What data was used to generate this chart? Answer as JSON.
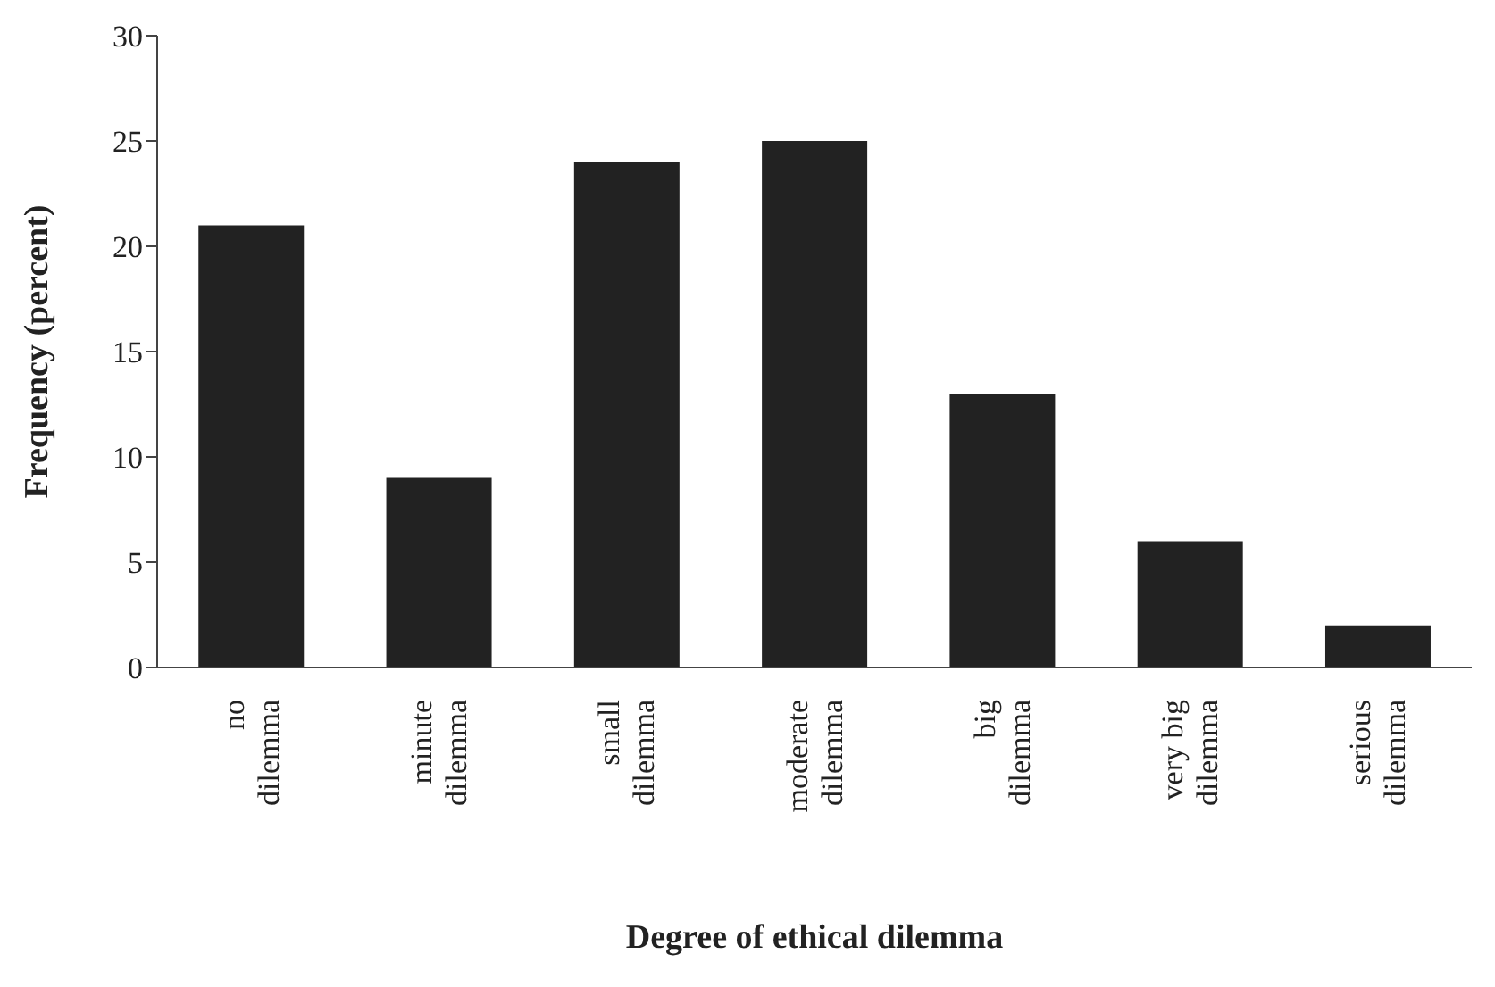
{
  "chart_data": {
    "type": "bar",
    "xlabel": "Degree of ethical dilemma",
    "ylabel": "Frequency (percent)",
    "categories": [
      "no dilemma",
      "minute dilemma",
      "small dilemma",
      "moderate dilemma",
      "big dilemma",
      "very big dilemma",
      "serious dilemma"
    ],
    "values": [
      21,
      9,
      24,
      25,
      13,
      6,
      2
    ],
    "color": "#222222",
    "ylim": [
      0,
      30
    ],
    "yticks": [
      0,
      5,
      10,
      15,
      20,
      25,
      30
    ],
    "grid": false,
    "legend": false
  }
}
